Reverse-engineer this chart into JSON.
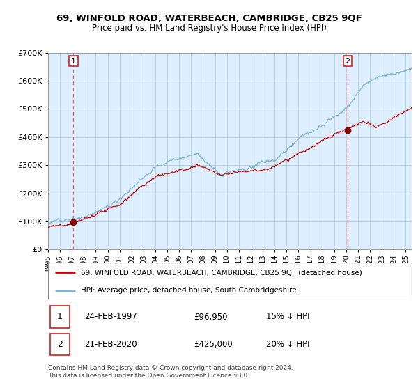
{
  "title1": "69, WINFOLD ROAD, WATERBEACH, CAMBRIDGE, CB25 9QF",
  "title2": "Price paid vs. HM Land Registry's House Price Index (HPI)",
  "legend_line1": "69, WINFOLD ROAD, WATERBEACH, CAMBRIDGE, CB25 9QF (detached house)",
  "legend_line2": "HPI: Average price, detached house, South Cambridgeshire",
  "annotation1_label": "1",
  "annotation1_date": "24-FEB-1997",
  "annotation1_price": "£96,950",
  "annotation1_hpi": "15% ↓ HPI",
  "annotation2_label": "2",
  "annotation2_date": "21-FEB-2020",
  "annotation2_price": "£425,000",
  "annotation2_hpi": "20% ↓ HPI",
  "footnote1": "Contains HM Land Registry data © Crown copyright and database right 2024.",
  "footnote2": "This data is licensed under the Open Government Licence v3.0.",
  "sale1_year": 1997.13,
  "sale1_price": 96950,
  "sale2_year": 2020.13,
  "sale2_price": 425000,
  "red_line_color": "#cc0000",
  "blue_line_color": "#7ab0d4",
  "bg_color": "#ddeeff",
  "grid_color": "#b0c4d8",
  "dashed_line_color": "#ff5555",
  "marker_color": "#880000",
  "box_edge_color": "#cc2222",
  "ylim_max": 700000,
  "ylim_min": 0,
  "xmin": 1995.0,
  "xmax": 2025.5
}
